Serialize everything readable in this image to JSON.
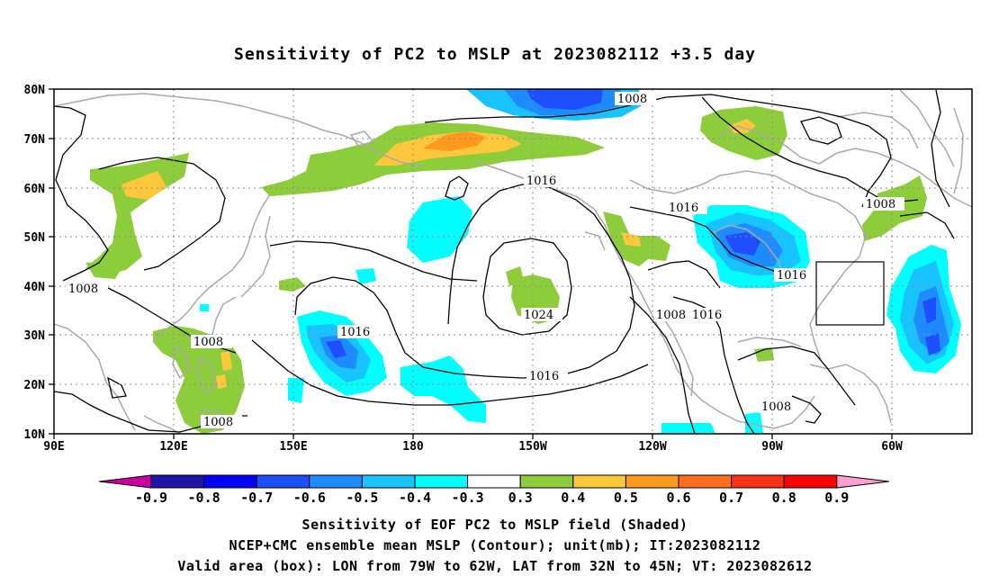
{
  "title": "Sensitivity of PC2 to MSLP at 2023082112 +3.5 day",
  "lat_ticks": [
    "80N",
    "70N",
    "60N",
    "50N",
    "40N",
    "30N",
    "20N",
    "10N"
  ],
  "lon_ticks": [
    "90E",
    "120E",
    "150E",
    "180",
    "150W",
    "120W",
    "90W",
    "60W"
  ],
  "contour_labels": [
    {
      "text": "1008",
      "id": "c1008-top"
    },
    {
      "text": "1016",
      "id": "c1016-alaska"
    },
    {
      "text": "1016",
      "id": "c1016-canada"
    },
    {
      "text": "1008",
      "id": "c1008-east"
    },
    {
      "text": "1008",
      "id": "c1008-west"
    },
    {
      "text": "1016",
      "id": "c1016-se"
    },
    {
      "text": "1008",
      "id": "c1008-mid"
    },
    {
      "text": "1016",
      "id": "c1016-wpac"
    },
    {
      "text": "1024",
      "id": "c1024"
    },
    {
      "text": "1016",
      "id": "c1016-south"
    },
    {
      "text": "1008",
      "id": "c1008-ca"
    },
    {
      "text": "1016",
      "id": "c1016-ca"
    },
    {
      "text": "1008",
      "id": "c1008-bottom"
    },
    {
      "text": "1008",
      "id": "c1008-gulf"
    }
  ],
  "colorbar": {
    "labels": [
      "-0.9",
      "-0.8",
      "-0.7",
      "-0.6",
      "-0.5",
      "-0.4",
      "-0.3",
      "0.3",
      "0.4",
      "0.5",
      "0.6",
      "0.7",
      "0.8",
      "0.9"
    ],
    "colors": [
      "#1f13a8",
      "#0000ff",
      "#1e4fff",
      "#1e8cff",
      "#19c3ff",
      "#00ffff",
      "#ffffff",
      "#8dcd3c",
      "#ffc83c",
      "#ff9a1e",
      "#ff6e1e",
      "#ff3214",
      "#ff0000"
    ],
    "low_end_color": "#c800a0",
    "high_end_color": "#ff9ed2"
  },
  "footer": {
    "line1": "Sensitivity of EOF PC2 to MSLP field (Shaded)",
    "line2": "NCEP+CMC ensemble mean MSLP (Contour); unit(mb); IT:2023082112",
    "line3": "Valid area (box): LON from 79W to 62W, LAT from 32N to 45N; VT: 2023082612"
  }
}
